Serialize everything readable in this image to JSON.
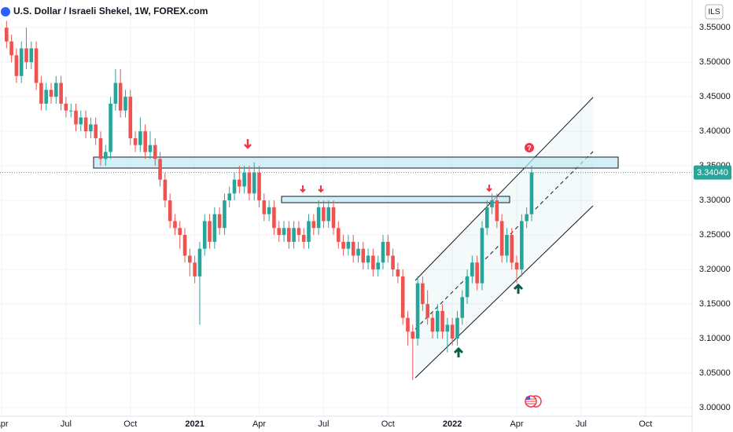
{
  "header": {
    "title": "U.S. Dollar / Israeli Shekel, 1W, FOREX.com",
    "currency_button": "ILS"
  },
  "chart_data": {
    "type": "candlestick",
    "up_color": "#26a69a",
    "down_color": "#ef5350",
    "grid": true,
    "xlim": [
      -1.32,
      138.4
    ],
    "xticks": [
      {
        "value": -1,
        "label": "Apr"
      },
      {
        "value": 12,
        "label": "Jul"
      },
      {
        "value": 25,
        "label": "Oct"
      },
      {
        "value": 38,
        "label": "2021"
      },
      {
        "value": 51,
        "label": "Apr"
      },
      {
        "value": 64,
        "label": "Jul"
      },
      {
        "value": 77,
        "label": "Oct"
      },
      {
        "value": 90,
        "label": "2022"
      },
      {
        "value": 103,
        "label": "Apr"
      },
      {
        "value": 116,
        "label": "Jul"
      },
      {
        "value": 129,
        "label": "Oct"
      }
    ],
    "ylim": [
      2.9875,
      3.59
    ],
    "yticks": [
      {
        "value": 3.0,
        "label": "3.00000"
      },
      {
        "value": 3.05,
        "label": "3.05000"
      },
      {
        "value": 3.1,
        "label": "3.10000"
      },
      {
        "value": 3.15,
        "label": "3.15000"
      },
      {
        "value": 3.2,
        "label": "3.20000"
      },
      {
        "value": 3.25,
        "label": "3.25000"
      },
      {
        "value": 3.3,
        "label": "3.30000"
      },
      {
        "value": 3.35,
        "label": "3.35000"
      },
      {
        "value": 3.4,
        "label": "3.40000"
      },
      {
        "value": 3.45,
        "label": "3.45000"
      },
      {
        "value": 3.5,
        "label": "3.50000"
      },
      {
        "value": 3.55,
        "label": "3.55000"
      }
    ],
    "last_price": {
      "value": 3.3404,
      "label": "3.34040"
    },
    "open": [
      3.55,
      3.53,
      3.51,
      3.48,
      3.52,
      3.5,
      3.52,
      3.47,
      3.44,
      3.46,
      3.45,
      3.47,
      3.44,
      3.43,
      3.43,
      3.41,
      3.42,
      3.4,
      3.41,
      3.39,
      3.36,
      3.37,
      3.44,
      3.47,
      3.43,
      3.45,
      3.39,
      3.38,
      3.4,
      3.37,
      3.38,
      3.36,
      3.33,
      3.3,
      3.27,
      3.26,
      3.25,
      3.22,
      3.21,
      3.19,
      3.23,
      3.27,
      3.24,
      3.28,
      3.26,
      3.3,
      3.31,
      3.33,
      3.32,
      3.34,
      3.31,
      3.34,
      3.3,
      3.28,
      3.29,
      3.26,
      3.25,
      3.26,
      3.24,
      3.26,
      3.25,
      3.24,
      3.27,
      3.26,
      3.29,
      3.27,
      3.29,
      3.26,
      3.24,
      3.23,
      3.24,
      3.22,
      3.23,
      3.21,
      3.22,
      3.2,
      3.21,
      3.24,
      3.22,
      3.2,
      3.19,
      3.13,
      3.11,
      3.1,
      3.18,
      3.15,
      3.13,
      3.11,
      3.14,
      3.11,
      3.12,
      3.1,
      3.13,
      3.16,
      3.19,
      3.21,
      3.18,
      3.26,
      3.29,
      3.3,
      3.27,
      3.22,
      3.25,
      3.21,
      3.2,
      3.27,
      3.28
    ],
    "high": [
      3.56,
      3.54,
      3.52,
      3.53,
      3.55,
      3.53,
      3.53,
      3.48,
      3.47,
      3.47,
      3.48,
      3.48,
      3.45,
      3.44,
      3.44,
      3.43,
      3.43,
      3.42,
      3.42,
      3.4,
      3.38,
      3.45,
      3.49,
      3.49,
      3.46,
      3.46,
      3.4,
      3.42,
      3.41,
      3.4,
      3.39,
      3.37,
      3.34,
      3.31,
      3.28,
      3.27,
      3.26,
      3.23,
      3.22,
      3.24,
      3.28,
      3.28,
      3.29,
      3.29,
      3.31,
      3.32,
      3.34,
      3.35,
      3.35,
      3.35,
      3.355,
      3.35,
      3.31,
      3.3,
      3.3,
      3.27,
      3.27,
      3.27,
      3.27,
      3.27,
      3.26,
      3.28,
      3.28,
      3.3,
      3.3,
      3.3,
      3.3,
      3.27,
      3.25,
      3.25,
      3.25,
      3.24,
      3.24,
      3.23,
      3.23,
      3.22,
      3.25,
      3.25,
      3.23,
      3.21,
      3.2,
      3.14,
      3.12,
      3.19,
      3.19,
      3.17,
      3.14,
      3.15,
      3.15,
      3.13,
      3.13,
      3.14,
      3.17,
      3.2,
      3.22,
      3.22,
      3.27,
      3.3,
      3.31,
      3.31,
      3.28,
      3.26,
      3.26,
      3.22,
      3.28,
      3.29,
      3.35
    ],
    "low": [
      3.52,
      3.5,
      3.47,
      3.47,
      3.49,
      3.49,
      3.46,
      3.43,
      3.43,
      3.44,
      3.44,
      3.43,
      3.42,
      3.42,
      3.4,
      3.4,
      3.39,
      3.39,
      3.38,
      3.35,
      3.35,
      3.36,
      3.43,
      3.42,
      3.42,
      3.38,
      3.37,
      3.37,
      3.36,
      3.36,
      3.35,
      3.32,
      3.29,
      3.26,
      3.25,
      3.23,
      3.21,
      3.19,
      3.18,
      3.12,
      3.22,
      3.23,
      3.23,
      3.25,
      3.25,
      3.29,
      3.3,
      3.31,
      3.31,
      3.3,
      3.3,
      3.29,
      3.27,
      3.27,
      3.25,
      3.24,
      3.24,
      3.23,
      3.23,
      3.24,
      3.23,
      3.23,
      3.25,
      3.25,
      3.26,
      3.26,
      3.25,
      3.23,
      3.22,
      3.22,
      3.21,
      3.21,
      3.2,
      3.2,
      3.19,
      3.19,
      3.2,
      3.21,
      3.19,
      3.18,
      3.12,
      3.09,
      3.04,
      3.09,
      3.14,
      3.12,
      3.1,
      3.1,
      3.1,
      3.08,
      3.09,
      3.09,
      3.12,
      3.15,
      3.18,
      3.17,
      3.17,
      3.25,
      3.28,
      3.26,
      3.21,
      3.21,
      3.2,
      3.18,
      3.19,
      3.26,
      3.27
    ],
    "close": [
      3.53,
      3.51,
      3.48,
      3.52,
      3.5,
      3.52,
      3.47,
      3.44,
      3.46,
      3.45,
      3.47,
      3.44,
      3.43,
      3.43,
      3.41,
      3.42,
      3.4,
      3.41,
      3.39,
      3.36,
      3.37,
      3.44,
      3.47,
      3.43,
      3.45,
      3.39,
      3.38,
      3.4,
      3.37,
      3.38,
      3.36,
      3.33,
      3.3,
      3.27,
      3.26,
      3.25,
      3.22,
      3.21,
      3.19,
      3.23,
      3.27,
      3.24,
      3.28,
      3.26,
      3.3,
      3.31,
      3.33,
      3.32,
      3.34,
      3.31,
      3.34,
      3.3,
      3.28,
      3.29,
      3.26,
      3.25,
      3.26,
      3.24,
      3.26,
      3.25,
      3.24,
      3.27,
      3.26,
      3.29,
      3.27,
      3.29,
      3.26,
      3.24,
      3.23,
      3.24,
      3.22,
      3.23,
      3.21,
      3.22,
      3.2,
      3.21,
      3.24,
      3.22,
      3.2,
      3.19,
      3.13,
      3.11,
      3.1,
      3.18,
      3.15,
      3.13,
      3.11,
      3.14,
      3.11,
      3.12,
      3.1,
      3.13,
      3.16,
      3.19,
      3.21,
      3.18,
      3.26,
      3.29,
      3.3,
      3.27,
      3.22,
      3.25,
      3.21,
      3.2,
      3.27,
      3.28,
      3.3404
    ]
  }
}
